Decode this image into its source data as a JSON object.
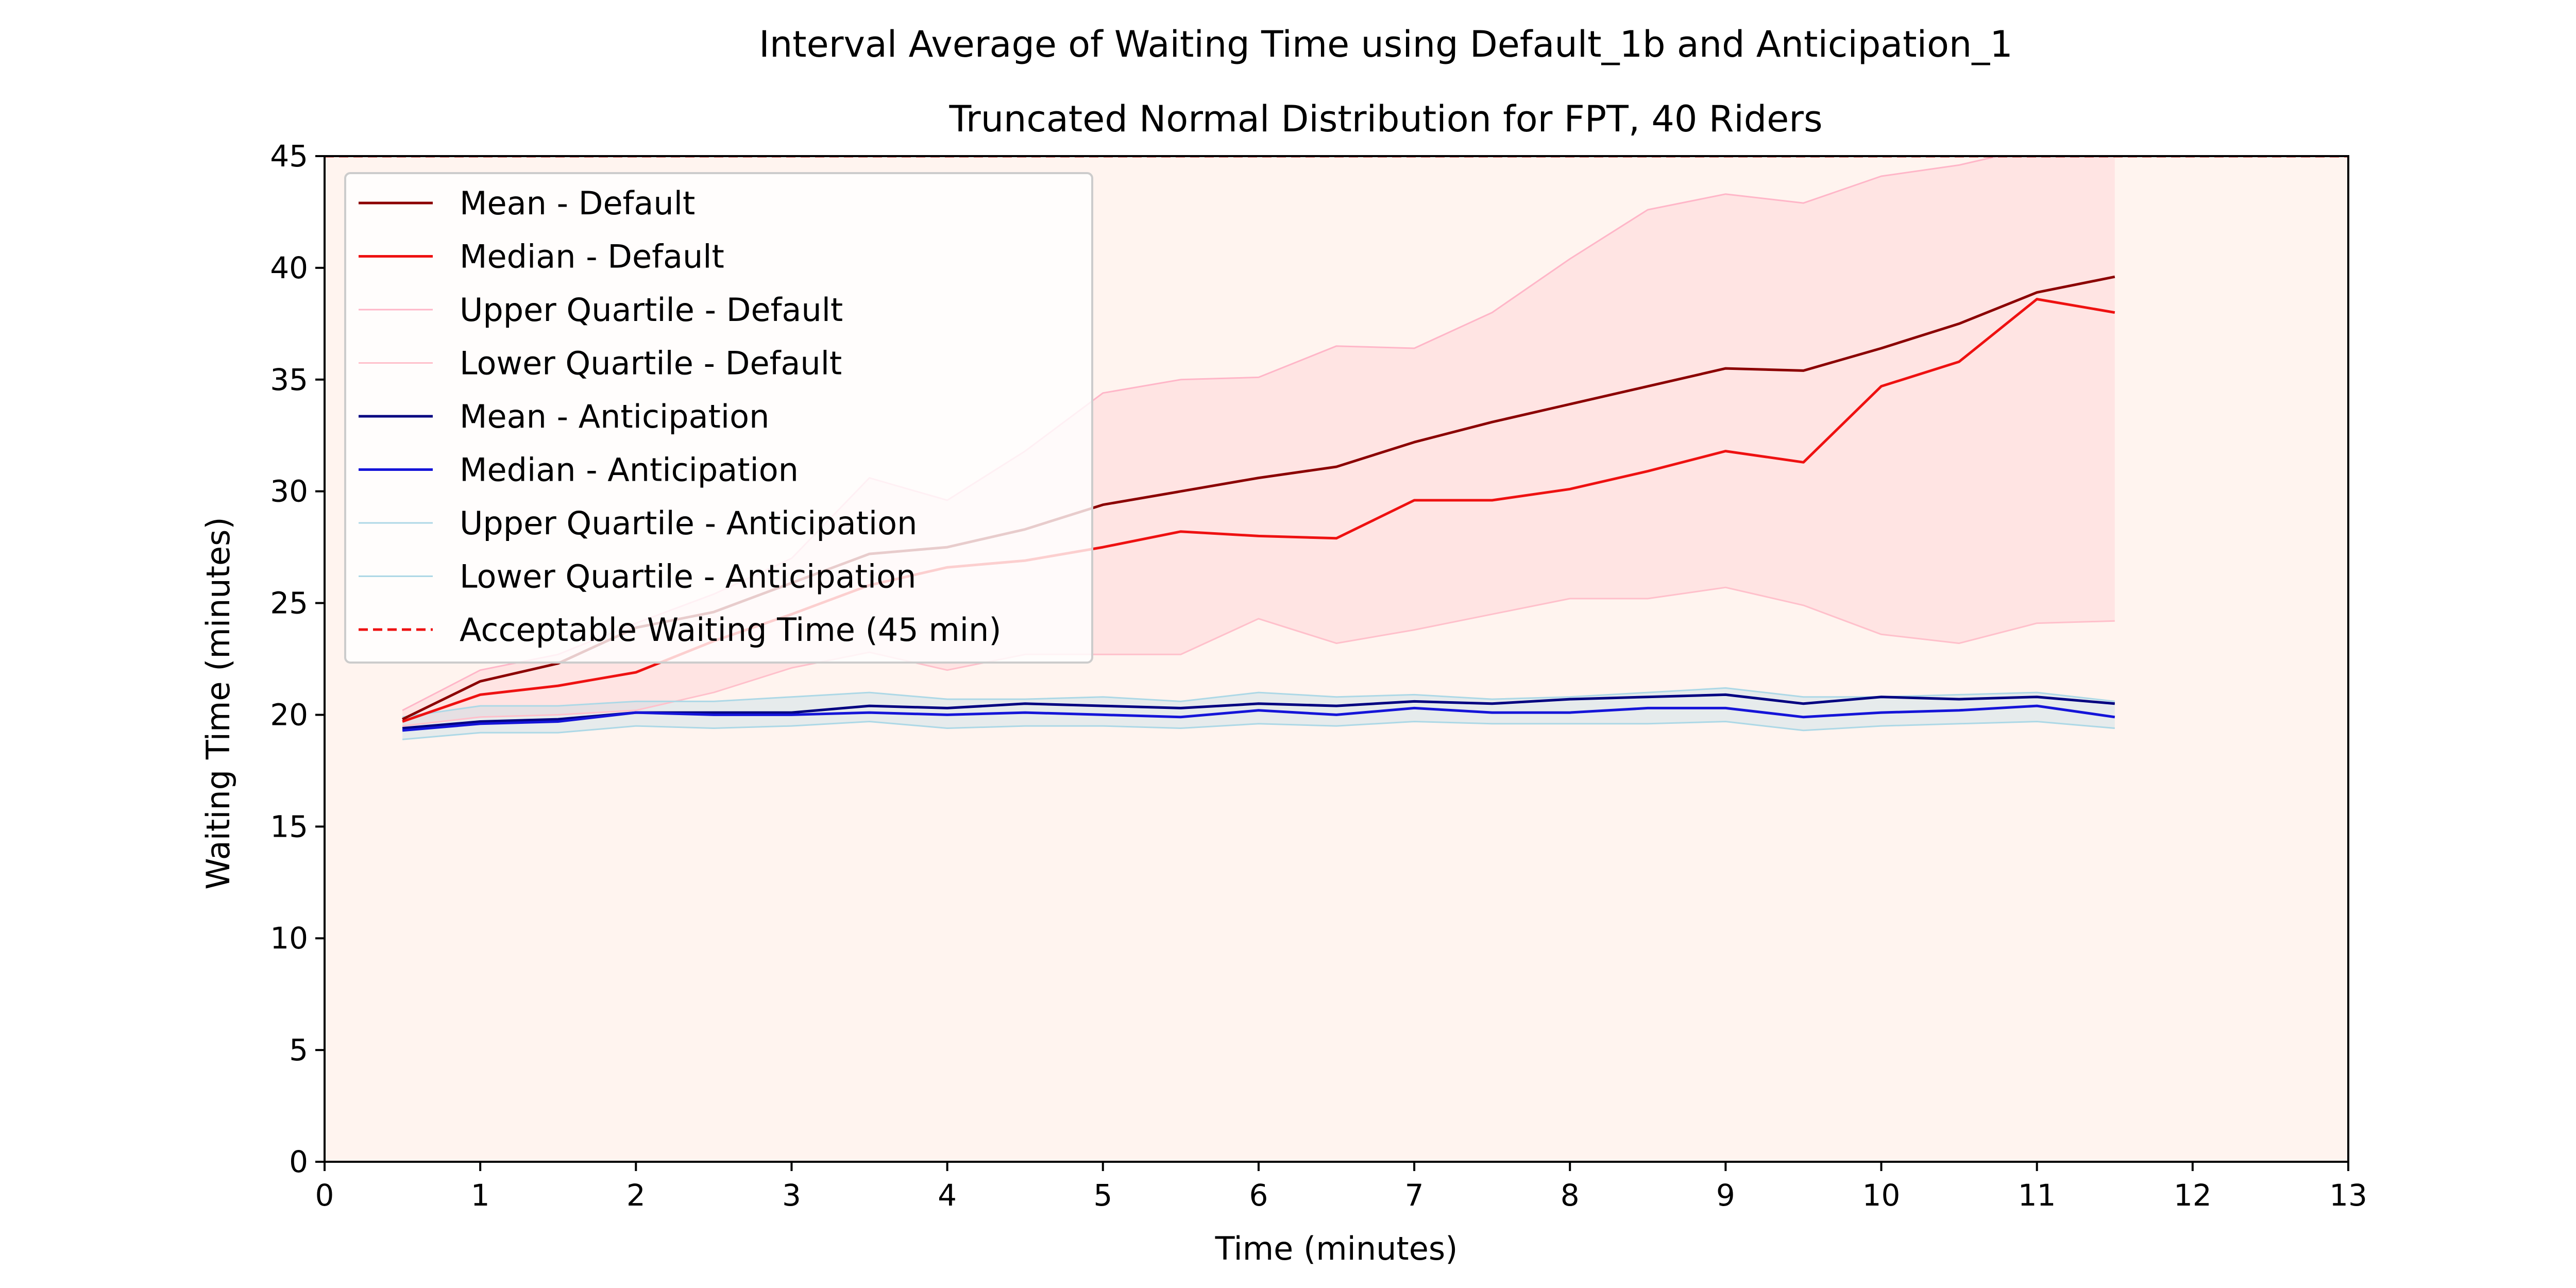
{
  "chart_data": {
    "type": "line",
    "title": "Interval Average of Waiting Time using Default_1b and Anticipation_1",
    "subtitle": "Truncated Normal Distribution for FPT, 40 Riders",
    "xlabel": "Time (minutes)",
    "ylabel": "Waiting Time (minutes)",
    "xlim": [
      0,
      13
    ],
    "ylim": [
      0,
      45
    ],
    "xticks": [
      0,
      1,
      2,
      3,
      4,
      5,
      6,
      7,
      8,
      9,
      10,
      11,
      12,
      13
    ],
    "yticks": [
      0,
      5,
      10,
      15,
      20,
      25,
      30,
      35,
      40,
      45
    ],
    "grid": false,
    "legend_position": "top-left",
    "background_color": "#fff4ef",
    "x": [
      0.5,
      1,
      1.5,
      2,
      2.5,
      3,
      3.5,
      4,
      4.5,
      5,
      5.5,
      6,
      6.5,
      7,
      7.5,
      8,
      8.5,
      9,
      9.5,
      10,
      10.5,
      11,
      11.5
    ],
    "series": [
      {
        "name": "Mean - Default",
        "color": "#8b0000",
        "width": 5,
        "style": "solid",
        "values": [
          19.8,
          21.5,
          22.3,
          23.9,
          24.6,
          25.9,
          27.2,
          27.5,
          28.3,
          29.4,
          30.0,
          30.6,
          31.1,
          32.2,
          33.1,
          33.9,
          34.7,
          35.5,
          35.4,
          36.4,
          37.5,
          38.9,
          39.6
        ]
      },
      {
        "name": "Median - Default",
        "color": "#ee1111",
        "width": 5,
        "style": "solid",
        "values": [
          19.7,
          20.9,
          21.3,
          21.9,
          23.3,
          24.5,
          25.8,
          26.6,
          26.9,
          27.5,
          28.2,
          28.0,
          27.9,
          29.6,
          29.6,
          30.1,
          30.9,
          31.8,
          31.3,
          34.7,
          35.8,
          38.6,
          38.0
        ]
      },
      {
        "name": "Upper Quartile - Default",
        "color": "#ffb6c8",
        "width": 3,
        "style": "solid",
        "values": [
          20.2,
          22.0,
          22.7,
          24.1,
          25.4,
          27.0,
          30.6,
          29.6,
          31.8,
          34.4,
          35.0,
          35.1,
          36.5,
          36.4,
          38.0,
          40.4,
          42.6,
          43.3,
          42.9,
          44.1,
          44.6,
          45.4,
          45.3
        ]
      },
      {
        "name": "Lower Quartile - Default",
        "color": "#ffc0cb",
        "width": 3,
        "style": "solid",
        "values": [
          19.5,
          19.9,
          20.0,
          20.2,
          21.0,
          22.1,
          22.8,
          22.0,
          22.7,
          22.7,
          22.7,
          24.3,
          23.2,
          23.8,
          24.5,
          25.2,
          25.2,
          25.7,
          24.9,
          23.6,
          23.2,
          24.1,
          24.2
        ]
      },
      {
        "name": "Mean - Anticipation",
        "color": "#000080",
        "width": 5,
        "style": "solid",
        "values": [
          19.4,
          19.7,
          19.8,
          20.1,
          20.1,
          20.1,
          20.4,
          20.3,
          20.5,
          20.4,
          20.3,
          20.5,
          20.4,
          20.6,
          20.5,
          20.7,
          20.8,
          20.9,
          20.5,
          20.8,
          20.7,
          20.8,
          20.5
        ]
      },
      {
        "name": "Median - Anticipation",
        "color": "#1414d8",
        "width": 5,
        "style": "solid",
        "values": [
          19.3,
          19.6,
          19.7,
          20.1,
          20.0,
          20.0,
          20.1,
          20.0,
          20.1,
          20.0,
          19.9,
          20.2,
          20.0,
          20.3,
          20.1,
          20.1,
          20.3,
          20.3,
          19.9,
          20.1,
          20.2,
          20.4,
          19.9
        ]
      },
      {
        "name": "Upper Quartile - Anticipation",
        "color": "#add8e6",
        "width": 3,
        "style": "solid",
        "values": [
          19.9,
          20.4,
          20.4,
          20.6,
          20.6,
          20.8,
          21.0,
          20.7,
          20.7,
          20.8,
          20.6,
          21.0,
          20.8,
          20.9,
          20.7,
          20.8,
          21.0,
          21.2,
          20.8,
          20.8,
          20.9,
          21.0,
          20.6
        ]
      },
      {
        "name": "Lower Quartile - Anticipation",
        "color": "#add8e6",
        "width": 3,
        "style": "solid",
        "values": [
          18.9,
          19.2,
          19.2,
          19.5,
          19.4,
          19.5,
          19.7,
          19.4,
          19.5,
          19.5,
          19.4,
          19.6,
          19.5,
          19.7,
          19.6,
          19.6,
          19.6,
          19.7,
          19.3,
          19.5,
          19.6,
          19.7,
          19.4
        ]
      },
      {
        "name": "Acceptable Waiting Time (45 min)",
        "color": "#ee1111",
        "width": 5,
        "style": "dashed",
        "constant": 45
      }
    ],
    "bands": [
      {
        "upper": "Upper Quartile - Default",
        "lower": "Lower Quartile - Default",
        "color": "#ffc7cf",
        "opacity": 0.35
      },
      {
        "upper": "Upper Quartile - Anticipation",
        "lower": "Lower Quartile - Anticipation",
        "color": "#add8e6",
        "opacity": 0.3
      }
    ]
  }
}
